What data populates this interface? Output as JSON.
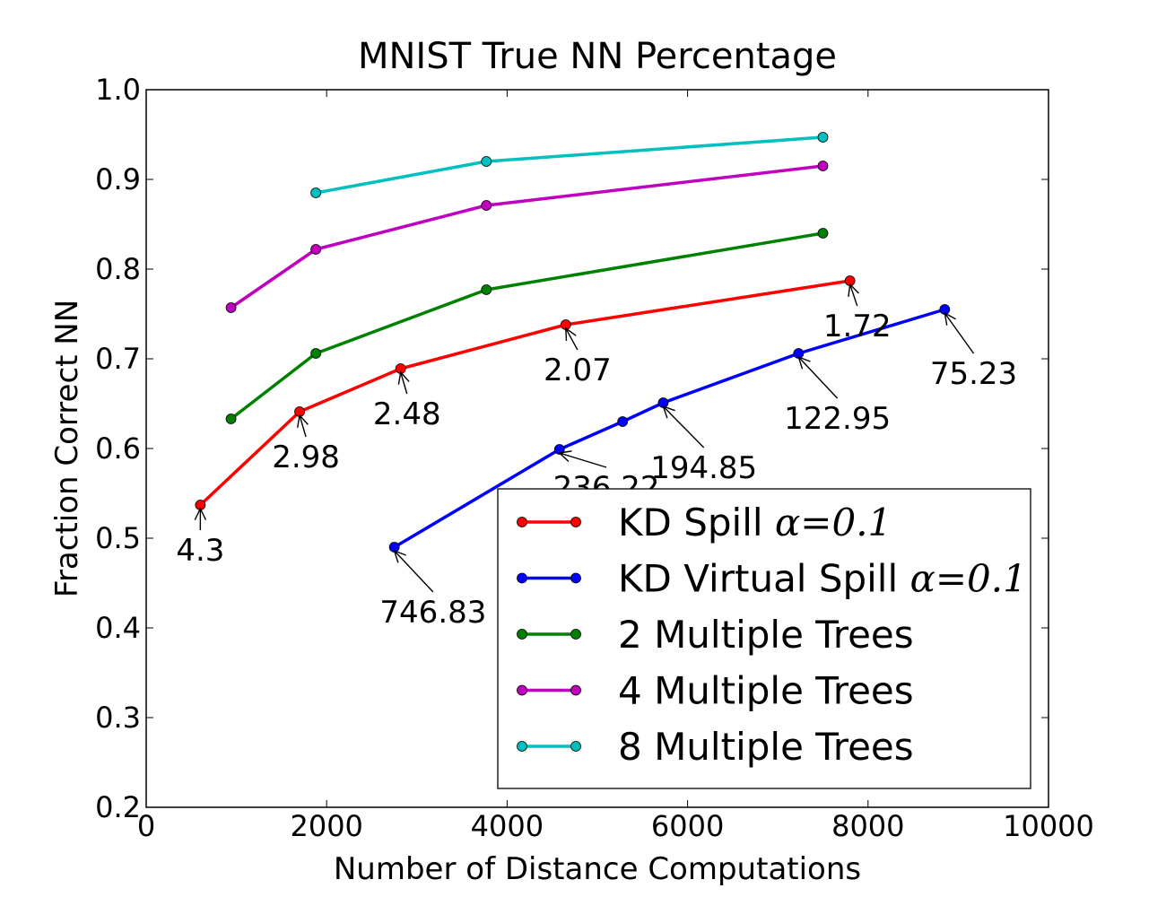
{
  "chart_data": {
    "type": "line",
    "title": "MNIST True NN Percentage",
    "xlabel": "Number of Distance Computations",
    "ylabel": "Fraction Correct NN",
    "xlim": [
      0,
      10000
    ],
    "ylim": [
      0.2,
      1.0
    ],
    "xticks": [
      0,
      2000,
      4000,
      6000,
      8000,
      10000
    ],
    "xtick_labels": [
      "0",
      "2000",
      "4000",
      "6000",
      "8000",
      "10000"
    ],
    "yticks": [
      0.2,
      0.3,
      0.4,
      0.5,
      0.6,
      0.7,
      0.8,
      0.9,
      1.0
    ],
    "ytick_labels": [
      "0.2",
      "0.3",
      "0.4",
      "0.5",
      "0.6",
      "0.7",
      "0.8",
      "0.9",
      "1.0"
    ],
    "grid": false,
    "legend_position": "lower-right",
    "series": [
      {
        "name": "KD Spill α=0.1",
        "legend_text": "KD Spill ",
        "legend_math": "α=0.1",
        "color": "#ff0000",
        "x": [
          600,
          1700,
          2820,
          4650,
          7800
        ],
        "y": [
          0.537,
          0.641,
          0.689,
          0.738,
          0.787
        ]
      },
      {
        "name": "KD Virtual Spill α=0.1",
        "legend_text": "KD Virtual Spill ",
        "legend_math": "α=0.1",
        "color": "#0000ff",
        "x": [
          2750,
          4580,
          5280,
          5730,
          7230,
          8850
        ],
        "y": [
          0.49,
          0.599,
          0.63,
          0.651,
          0.706,
          0.755
        ]
      },
      {
        "name": "2 Multiple Trees",
        "legend_text": "2 Multiple Trees",
        "color": "#008000",
        "x": [
          940,
          1880,
          3770,
          7500
        ],
        "y": [
          0.633,
          0.706,
          0.777,
          0.84
        ]
      },
      {
        "name": "4 Multiple Trees",
        "legend_text": "4 Multiple Trees",
        "color": "#bf00bf",
        "x": [
          940,
          1880,
          3770,
          7500
        ],
        "y": [
          0.757,
          0.822,
          0.871,
          0.915
        ]
      },
      {
        "name": "8 Multiple Trees",
        "legend_text": "8 Multiple Trees",
        "color": "#00bfbf",
        "x": [
          1880,
          3770,
          7500
        ],
        "y": [
          0.885,
          0.92,
          0.947
        ]
      }
    ],
    "annotations": [
      {
        "text": "4.3",
        "x": 600,
        "y": 0.537,
        "text_x": 600,
        "text_y": 0.475
      },
      {
        "text": "2.98",
        "x": 1700,
        "y": 0.641,
        "text_x": 1770,
        "text_y": 0.579
      },
      {
        "text": "2.48",
        "x": 2820,
        "y": 0.689,
        "text_x": 2890,
        "text_y": 0.627
      },
      {
        "text": "2.07",
        "x": 4650,
        "y": 0.738,
        "text_x": 4780,
        "text_y": 0.676
      },
      {
        "text": "1.72",
        "x": 7800,
        "y": 0.787,
        "text_x": 7880,
        "text_y": 0.725
      },
      {
        "text": "746.83",
        "x": 2750,
        "y": 0.49,
        "text_x": 3180,
        "text_y": 0.406
      },
      {
        "text": "236.22",
        "x": 4580,
        "y": 0.599,
        "text_x": 5100,
        "text_y": 0.545
      },
      {
        "text": "194.85",
        "x": 5730,
        "y": 0.651,
        "text_x": 6180,
        "text_y": 0.567
      },
      {
        "text": "122.95",
        "x": 7230,
        "y": 0.706,
        "text_x": 7660,
        "text_y": 0.622
      },
      {
        "text": "75.23",
        "x": 8850,
        "y": 0.755,
        "text_x": 9170,
        "text_y": 0.672
      }
    ]
  }
}
